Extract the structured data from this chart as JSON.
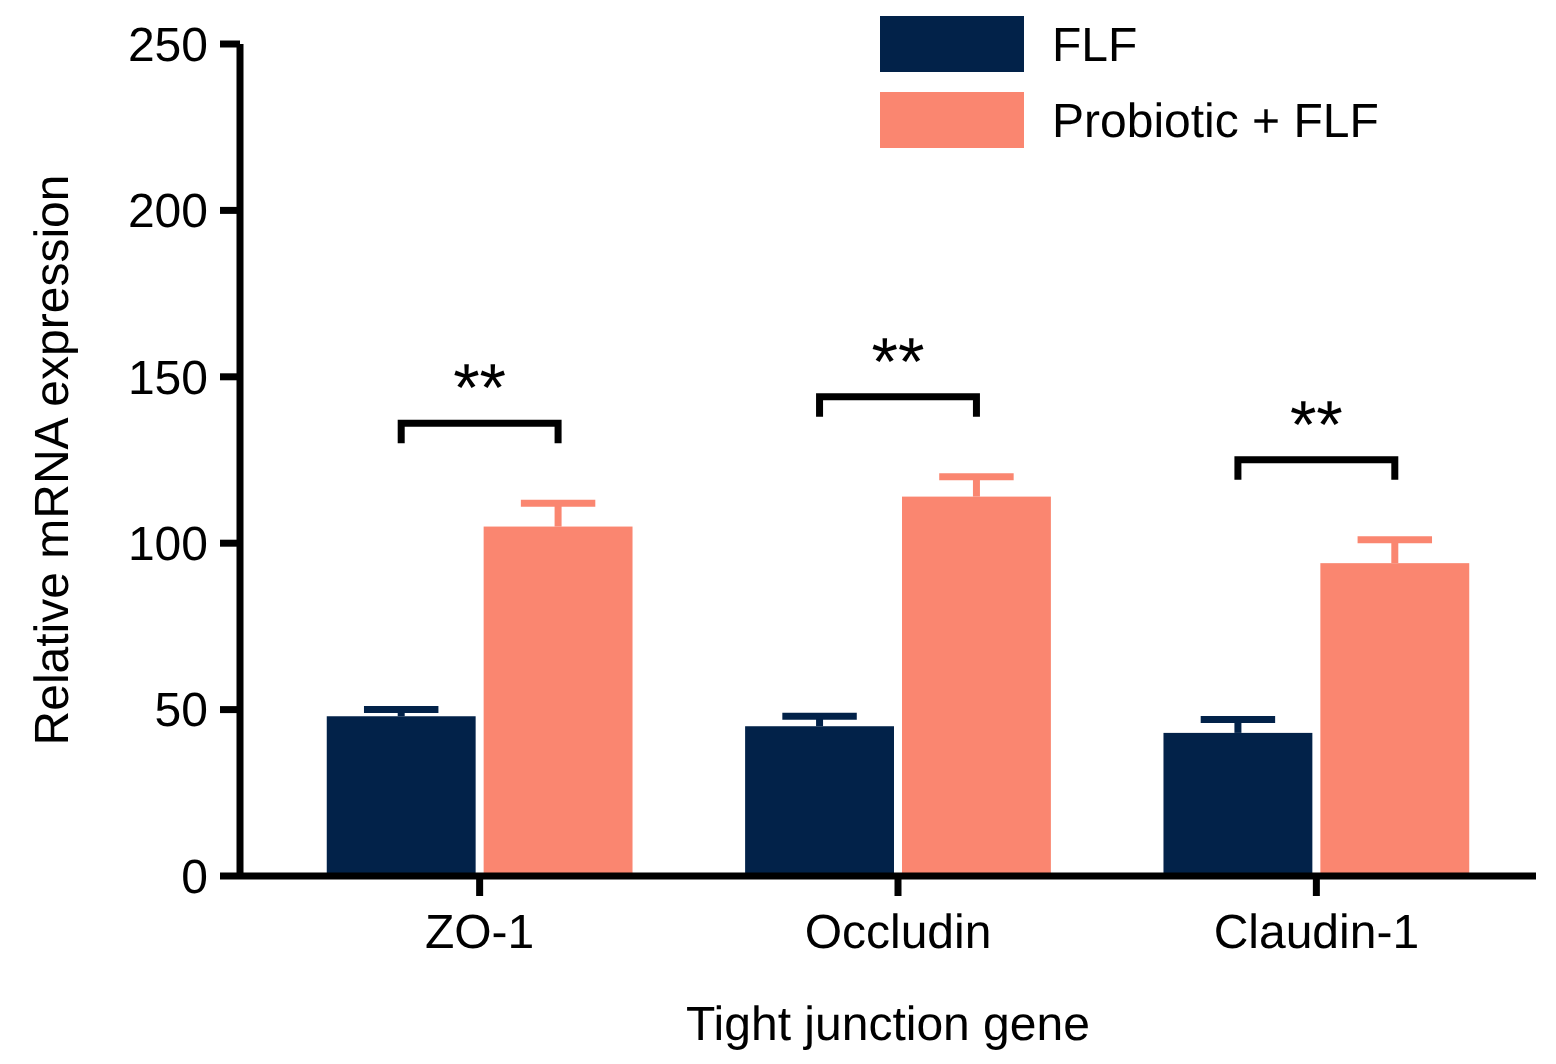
{
  "chart_data": {
    "type": "bar",
    "xlabel": "Tight junction gene",
    "ylabel": "Relative mRNA expression",
    "categories": [
      "ZO-1",
      "Occludin",
      "Claudin-1"
    ],
    "series": [
      {
        "name": "FLF",
        "color": "#022249",
        "values": [
          48,
          45,
          43
        ],
        "errors": [
          2,
          3,
          4
        ]
      },
      {
        "name": "Probiotic + FLF",
        "color": "#fa8670",
        "values": [
          105,
          114,
          94
        ],
        "errors": [
          7,
          6,
          7
        ]
      }
    ],
    "ylim": [
      0,
      250
    ],
    "yticks": [
      0,
      50,
      100,
      150,
      200,
      250
    ],
    "legend": "top right",
    "annotations": [
      "**",
      "**",
      "**"
    ]
  }
}
